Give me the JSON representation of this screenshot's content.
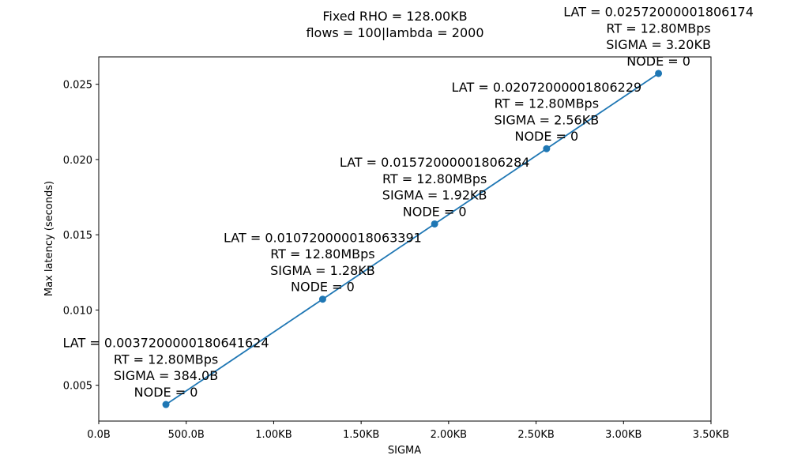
{
  "chart_data": {
    "type": "line",
    "title": "Fixed RHO = 128.00KB",
    "subtitle": "flows = 100|lambda = 2000",
    "x_label": "SIGMA",
    "y_label": "Max latency (seconds)",
    "x": [
      384,
      1280,
      1920,
      2560,
      3200
    ],
    "series": [
      {
        "color": "#1f77b4",
        "values": [
          0.0037200000180641624,
          0.010720000018063391,
          0.01572000001806284,
          0.02072000001806229,
          0.02572000001806174
        ]
      }
    ],
    "annotations": [
      [
        "LAT = 0.0037200000180641624",
        "RT = 12.80MBps",
        "SIGMA = 384.0B",
        "NODE = 0"
      ],
      [
        "LAT = 0.010720000018063391",
        "RT = 12.80MBps",
        "SIGMA = 1.28KB",
        "NODE = 0"
      ],
      [
        "LAT = 0.01572000001806284",
        "RT = 12.80MBps",
        "SIGMA = 1.92KB",
        "NODE = 0"
      ],
      [
        "LAT = 0.02072000001806229",
        "RT = 12.80MBps",
        "SIGMA = 2.56KB",
        "NODE = 0"
      ],
      [
        "LAT = 0.02572000001806174",
        "RT = 12.80MBps",
        "SIGMA = 3.20KB",
        "NODE = 0"
      ]
    ],
    "xlim": [
      0,
      3500
    ],
    "xticks": [
      {
        "value": 0,
        "label": "0.0B"
      },
      {
        "value": 500,
        "label": "500.0B"
      },
      {
        "value": 1000,
        "label": "1.00KB"
      },
      {
        "value": 1500,
        "label": "1.50KB"
      },
      {
        "value": 2000,
        "label": "2.00KB"
      },
      {
        "value": 2500,
        "label": "2.50KB"
      },
      {
        "value": 3000,
        "label": "3.00KB"
      },
      {
        "value": 3500,
        "label": "3.50KB"
      }
    ],
    "ylim": [
      0.00262,
      0.02682
    ],
    "yticks": [
      0.005,
      {
        "value": 0.01,
        "label": "0.010"
      },
      0.015,
      {
        "value": 0.02,
        "label": "0.020"
      },
      0.025
    ],
    "grid": false
  }
}
